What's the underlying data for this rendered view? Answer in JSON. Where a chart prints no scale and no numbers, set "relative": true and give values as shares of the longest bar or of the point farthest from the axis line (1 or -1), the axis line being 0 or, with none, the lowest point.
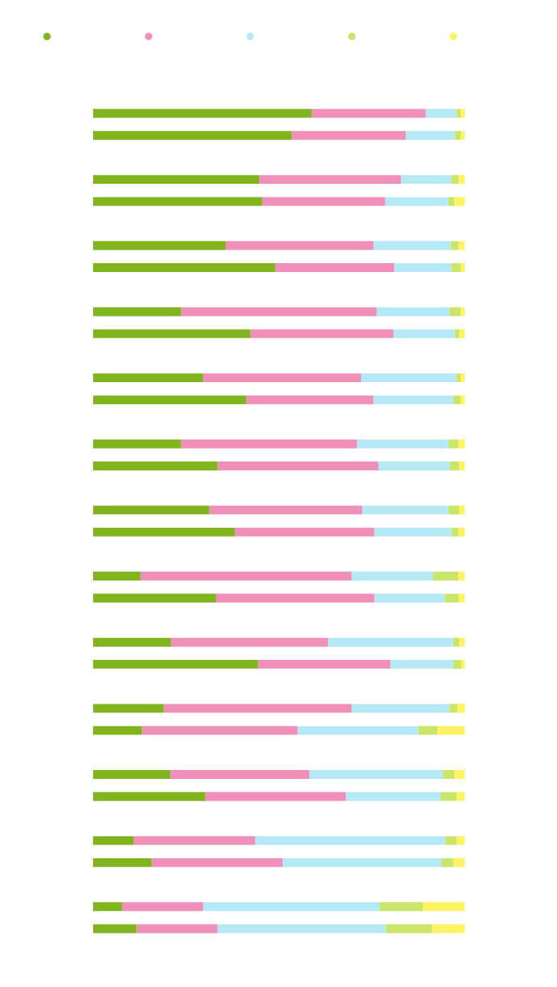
{
  "chart_data": {
    "type": "bar",
    "orientation": "horizontal",
    "stacked": true,
    "relative": true,
    "categories": [
      null,
      null,
      null,
      null,
      null,
      null,
      null,
      null,
      null,
      null,
      null,
      null,
      null,
      null,
      null,
      null,
      null,
      null,
      null,
      null,
      null,
      null,
      null,
      null,
      null,
      null
    ],
    "series": [
      {
        "color": "#80b51e",
        "values": [
          0.588,
          0.534,
          0.447,
          0.455,
          0.357,
          0.49,
          0.237,
          0.423,
          0.296,
          0.412,
          0.237,
          0.335,
          0.313,
          0.381,
          0.128,
          0.331,
          0.209,
          0.444,
          0.19,
          0.131,
          0.207,
          0.302,
          0.109,
          0.157,
          0.078,
          0.117
        ]
      },
      {
        "color": "#f090b9",
        "values": [
          0.307,
          0.307,
          0.381,
          0.331,
          0.397,
          0.32,
          0.526,
          0.385,
          0.425,
          0.342,
          0.473,
          0.433,
          0.411,
          0.376,
          0.567,
          0.426,
          0.423,
          0.356,
          0.505,
          0.419,
          0.375,
          0.378,
          0.327,
          0.353,
          0.218,
          0.218
        ]
      },
      {
        "color": "#b5e9f5",
        "values": [
          0.083,
          0.132,
          0.136,
          0.17,
          0.208,
          0.154,
          0.196,
          0.165,
          0.257,
          0.215,
          0.246,
          0.191,
          0.232,
          0.207,
          0.22,
          0.189,
          0.337,
          0.169,
          0.264,
          0.325,
          0.358,
          0.255,
          0.512,
          0.427,
          0.475,
          0.453
        ]
      },
      {
        "color": "#c9e66a",
        "values": [
          0.011,
          0.016,
          0.019,
          0.016,
          0.021,
          0.025,
          0.03,
          0.012,
          0.011,
          0.02,
          0.027,
          0.026,
          0.029,
          0.019,
          0.068,
          0.037,
          0.016,
          0.022,
          0.021,
          0.051,
          0.032,
          0.043,
          0.03,
          0.032,
          0.116,
          0.124
        ]
      },
      {
        "color": "#fff263",
        "values": [
          0.011,
          0.011,
          0.017,
          0.028,
          0.017,
          0.011,
          0.011,
          0.015,
          0.011,
          0.011,
          0.017,
          0.015,
          0.015,
          0.017,
          0.017,
          0.017,
          0.015,
          0.009,
          0.02,
          0.074,
          0.028,
          0.022,
          0.022,
          0.031,
          0.113,
          0.088
        ]
      }
    ]
  }
}
